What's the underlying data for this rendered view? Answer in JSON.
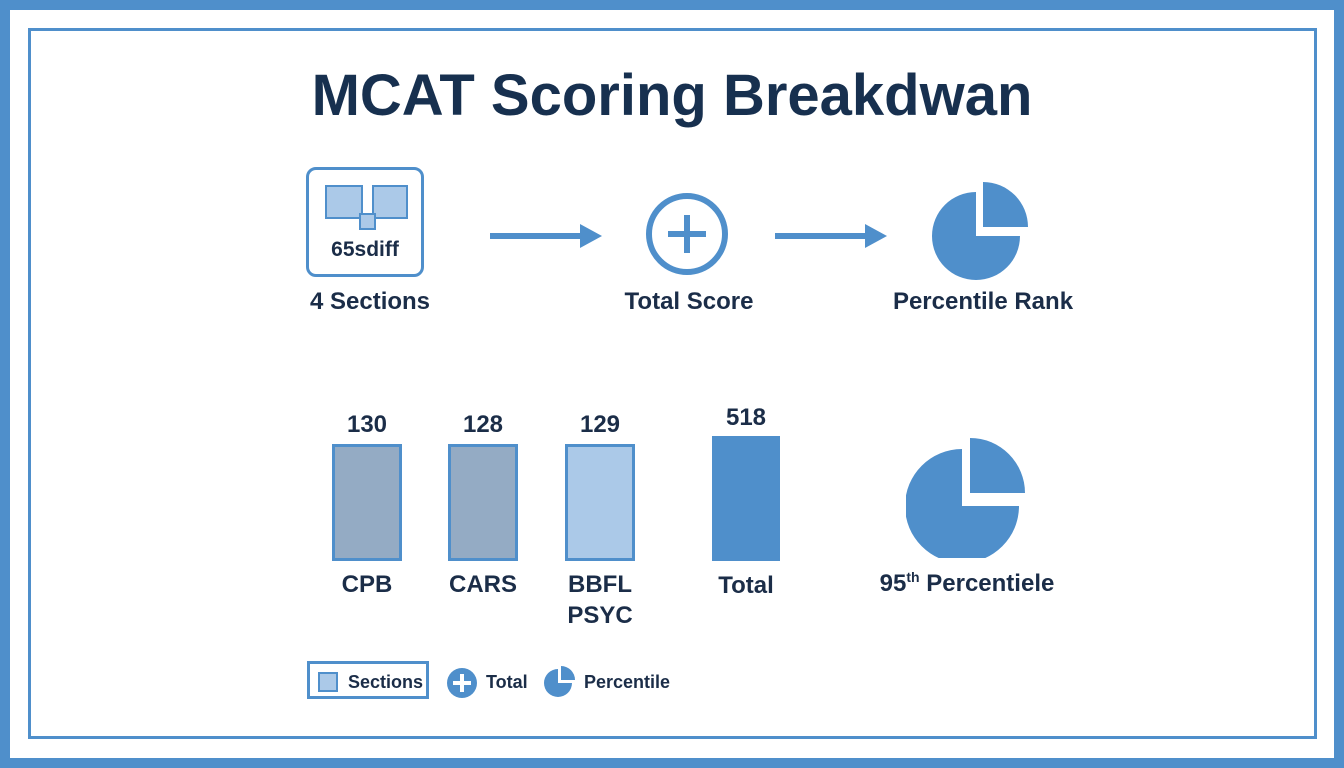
{
  "title": "MCAT Scoring Breakdwan",
  "flow": [
    {
      "label": "4 Sections",
      "icon": "sections-icon",
      "icon_text": "65sdiff"
    },
    {
      "label": "Total Score",
      "icon": "plus-circle-icon"
    },
    {
      "label": "Percentile Rank",
      "icon": "pie-icon"
    }
  ],
  "bars": [
    {
      "label": "CPB",
      "value": "130",
      "color": "#94abc4"
    },
    {
      "label": "CARS",
      "value": "128",
      "color": "#94abc4"
    },
    {
      "label": "BBFL",
      "label2": "PSYC",
      "value": "129",
      "color": "#abc9e8"
    },
    {
      "label": "Total",
      "value": "518",
      "color": "#4f8fcb"
    }
  ],
  "percentile": {
    "number": "95",
    "suffix": "th",
    "text": " Percentiele"
  },
  "legend": [
    {
      "label": "Sections"
    },
    {
      "label": "Total"
    },
    {
      "label": "Percentile"
    }
  ],
  "colors": {
    "accent": "#4f8fcb",
    "text": "#1b2d48"
  }
}
